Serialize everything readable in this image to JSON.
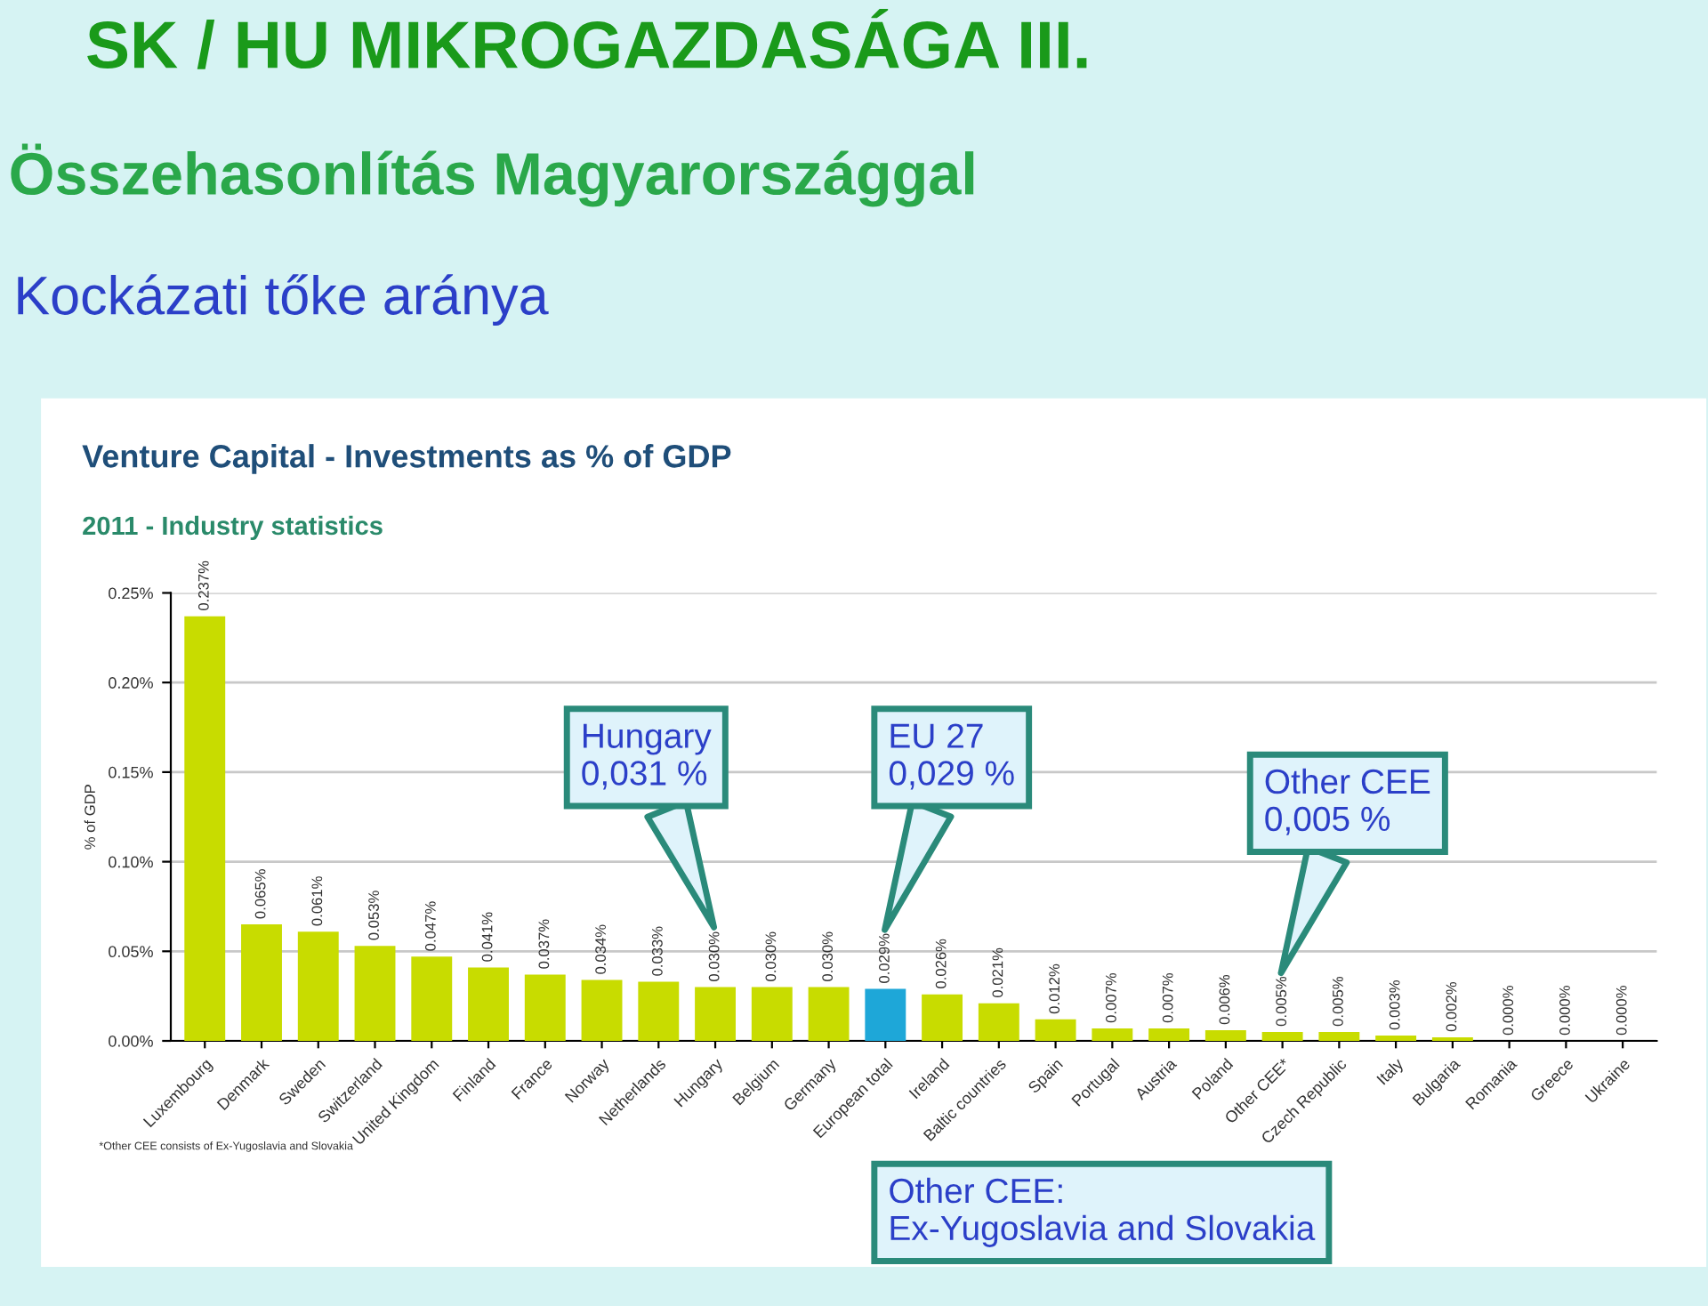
{
  "chart_data": {
    "type": "bar",
    "title": "SK / HU MIKROGAZDASÁGA III.",
    "subtitle": "Összehasonlítás Magyarországgal",
    "ylabel": "% of GDP",
    "categories": [
      "Luxembourg",
      "Denmark",
      "Sweden",
      "Switzerland",
      "United Kingdom",
      "Finland",
      "France",
      "Norway",
      "Netherlands",
      "Hungary",
      "Belgium",
      "Germany",
      "European total",
      "Ireland",
      "Baltic countries",
      "Spain",
      "Portugal",
      "Austria",
      "Poland",
      "Other CEE*",
      "Czech Republic",
      "Italy",
      "Bulgaria",
      "Romania",
      "Greece",
      "Ukraine"
    ],
    "values": [
      0.237,
      0.065,
      0.061,
      0.053,
      0.047,
      0.041,
      0.037,
      0.034,
      0.033,
      0.03,
      0.03,
      0.03,
      0.029,
      0.026,
      0.021,
      0.012,
      0.007,
      0.007,
      0.006,
      0.005,
      0.005,
      0.003,
      0.002,
      0.0,
      0.0,
      0.0
    ],
    "colors": [
      "#c8dc00",
      "#c8dc00",
      "#c8dc00",
      "#c8dc00",
      "#c8dc00",
      "#c8dc00",
      "#c8dc00",
      "#c8dc00",
      "#c8dc00",
      "#c8dc00",
      "#c8dc00",
      "#c8dc00",
      "#1ea7d8",
      "#c8dc00",
      "#c8dc00",
      "#c8dc00",
      "#c8dc00",
      "#c8dc00",
      "#c8dc00",
      "#c8dc00",
      "#c8dc00",
      "#c8dc00",
      "#c8dc00",
      "#c8dc00",
      "#c8dc00",
      "#c8dc00"
    ],
    "value_labels": [
      "0.237%",
      "0.065%",
      "0.061%",
      "0.053%",
      "0.047%",
      "0.041%",
      "0.037%",
      "0.034%",
      "0.033%",
      "0.030%",
      "0.030%",
      "0.030%",
      "0.029%",
      "0.026%",
      "0.021%",
      "0.012%",
      "0.007%",
      "0.007%",
      "0.006%",
      "0.005%",
      "0.005%",
      "0.003%",
      "0.002%",
      "0.000%",
      "0.000%",
      "0.000%"
    ],
    "ylim": [
      0,
      0.25
    ],
    "yticks": [
      {
        "value": 0,
        "label": "0.00%"
      },
      {
        "value": 0.05,
        "label": "0.05%"
      },
      {
        "value": 0.1,
        "label": "0.10%"
      },
      {
        "value": 0.15,
        "label": "0.15%"
      },
      {
        "value": 0.2,
        "label": "0.20%"
      },
      {
        "value": 0.25,
        "label": "0.25%"
      }
    ],
    "grid": "y",
    "annotations": [
      "Kockázati tőke aránya",
      "Venture Capital - Investments as % of GDP",
      "2011 - Industry statistics",
      "Hungary\n0,031 %",
      "EU 27\n0,029 %",
      "Other CEE\n0,005 %",
      "*Other CEE consists of Ex-Yugoslavia and Slovakia",
      "Other CEE:\nEx-Yugoslavia and Slovakia"
    ]
  }
}
